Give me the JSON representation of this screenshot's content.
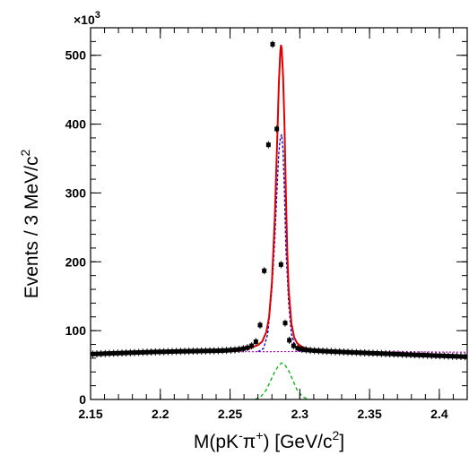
{
  "chart_data": {
    "type": "scatter",
    "title": "",
    "xlabel": "M(pK-π+) [GeV/c2]",
    "ylabel": "Events / 3 MeV/c2",
    "xlim": [
      2.15,
      2.42
    ],
    "ylim": [
      0,
      540000
    ],
    "grid": false,
    "y_multiplier_label": "×10",
    "y_multiplier_exponent": "3",
    "x_ticks": [
      "2.15",
      "2.2",
      "2.25",
      "2.3",
      "2.35",
      "2.4"
    ],
    "y_ticks": [
      "0",
      "100",
      "200",
      "300",
      "400",
      "500"
    ],
    "x_tick_values": [
      2.15,
      2.2,
      2.25,
      2.3,
      2.35,
      2.4
    ],
    "y_tick_values": [
      0,
      100000,
      200000,
      300000,
      400000,
      500000
    ],
    "colors": {
      "data": "#000000",
      "total_fit": "#e00000",
      "signal_component_1": "#0000cc",
      "signal_component_2": "#00b000",
      "background": "#cc00cc"
    },
    "series": [
      {
        "kind": "data_points",
        "x": [
          2.1515,
          2.1545,
          2.1575,
          2.1605,
          2.1635,
          2.1665,
          2.1695,
          2.1725,
          2.1755,
          2.1785,
          2.1815,
          2.1845,
          2.1875,
          2.1905,
          2.1935,
          2.1965,
          2.1995,
          2.2025,
          2.2055,
          2.2085,
          2.2115,
          2.2145,
          2.2175,
          2.2205,
          2.2235,
          2.2265,
          2.2295,
          2.2325,
          2.2355,
          2.2385,
          2.2415,
          2.2445,
          2.2475,
          2.2505,
          2.2535,
          2.2565,
          2.2595,
          2.2625,
          2.2655,
          2.2685,
          2.2715,
          2.2745,
          2.2775,
          2.2805,
          2.2835,
          2.2865,
          2.2895,
          2.2925,
          2.2955,
          2.2985,
          2.3015,
          2.3045,
          2.3075,
          2.3105,
          2.3135,
          2.3165,
          2.3195,
          2.3225,
          2.3255,
          2.3285,
          2.3315,
          2.3345,
          2.3375,
          2.3405,
          2.3435,
          2.3465,
          2.3495,
          2.3525,
          2.3555,
          2.3585,
          2.3615,
          2.3645,
          2.3675,
          2.3705,
          2.3735,
          2.3765,
          2.3795,
          2.3825,
          2.3855,
          2.3885,
          2.3915,
          2.3945,
          2.3975,
          2.4005,
          2.4035,
          2.4065,
          2.4095,
          2.4125,
          2.4155,
          2.4185
        ],
        "y": [
          66000,
          66200,
          66400,
          66700,
          66900,
          67100,
          67300,
          67500,
          67700,
          67900,
          68100,
          68300,
          68500,
          68700,
          68900,
          69100,
          69200,
          69300,
          69500,
          69600,
          69800,
          69900,
          70000,
          70100,
          70200,
          70300,
          70400,
          70500,
          70600,
          70700,
          70800,
          71000,
          71300,
          71700,
          72100,
          72800,
          73800,
          75200,
          78000,
          84000,
          108000,
          187000,
          370000,
          516000,
          393000,
          196000,
          111000,
          86000,
          78000,
          74500,
          73000,
          72000,
          71400,
          71000,
          70600,
          70300,
          70000,
          69700,
          69400,
          69200,
          68900,
          68700,
          68400,
          68200,
          67900,
          67700,
          67400,
          67200,
          67000,
          66700,
          66500,
          66300,
          66000,
          65800,
          65500,
          65300,
          65100,
          64800,
          64600,
          64400,
          64200,
          63900,
          63700,
          63500,
          63300,
          63000,
          62800,
          62600,
          62400,
          62100
        ]
      },
      {
        "kind": "total_fit",
        "x": [
          2.15,
          2.16,
          2.17,
          2.18,
          2.19,
          2.2,
          2.21,
          2.22,
          2.23,
          2.24,
          2.25,
          2.255,
          2.26,
          2.265,
          2.27,
          2.273,
          2.276,
          2.278,
          2.28,
          2.282,
          2.284,
          2.285,
          2.286,
          2.2865,
          2.287,
          2.288,
          2.289,
          2.29,
          2.291,
          2.292,
          2.294,
          2.296,
          2.298,
          2.301,
          2.305,
          2.31,
          2.32,
          2.33,
          2.34,
          2.35,
          2.36,
          2.37,
          2.38,
          2.39,
          2.4,
          2.41,
          2.42
        ],
        "y": [
          67000,
          67700,
          68300,
          68800,
          69300,
          69700,
          70100,
          70400,
          70700,
          71000,
          71600,
          72200,
          73300,
          75000,
          79000,
          84000,
          98000,
          120000,
          170000,
          260000,
          390000,
          460000,
          505000,
          515000,
          510000,
          470000,
          400000,
          300000,
          215000,
          160000,
          110000,
          90000,
          82000,
          77000,
          74000,
          72500,
          71000,
          70200,
          69500,
          68800,
          68000,
          67200,
          66500,
          65800,
          65100,
          64400,
          63800
        ]
      },
      {
        "kind": "background",
        "x": [
          2.15,
          2.2,
          2.25,
          2.3,
          2.35,
          2.4,
          2.42
        ],
        "y": [
          67500,
          68600,
          69300,
          69600,
          69400,
          68900,
          68600
        ]
      },
      {
        "kind": "signal_component_1",
        "x": [
          2.27,
          2.274,
          2.277,
          2.28,
          2.282,
          2.284,
          2.285,
          2.286,
          2.287,
          2.288,
          2.289,
          2.29,
          2.292,
          2.294,
          2.297,
          2.3,
          2.303
        ],
        "y": [
          69500,
          74000,
          95000,
          160000,
          230000,
          320000,
          360000,
          380000,
          385000,
          360000,
          300000,
          220000,
          140000,
          95000,
          75000,
          70000,
          69700
        ]
      },
      {
        "kind": "signal_component_2",
        "x": [
          2.268,
          2.272,
          2.276,
          2.279,
          2.282,
          2.285,
          2.287,
          2.289,
          2.292,
          2.295,
          2.298,
          2.302,
          2.306
        ],
        "y": [
          0,
          4000,
          14000,
          27000,
          40000,
          50000,
          53000,
          51000,
          42000,
          28000,
          14000,
          4000,
          0
        ]
      }
    ]
  }
}
